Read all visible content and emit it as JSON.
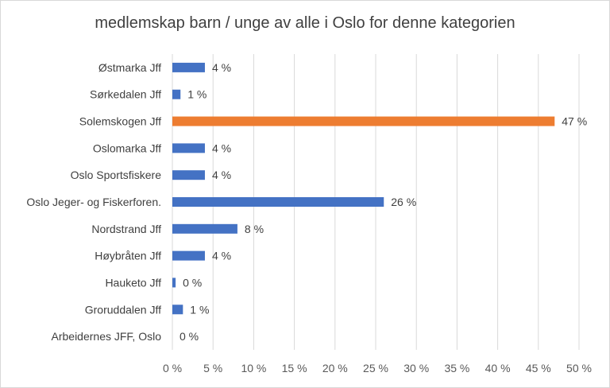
{
  "chart_data": {
    "type": "bar",
    "orientation": "horizontal",
    "title": "medlemskap barn / unge av alle i Oslo for denne kategorien",
    "categories": [
      "Østmarka Jff",
      "Sørkedalen Jff",
      "Solemskogen Jff",
      "Oslomarka Jff",
      "Oslo Sportsfiskere",
      "Oslo Jeger- og Fiskerforen.",
      "Nordstrand Jff",
      "Høybråten Jff",
      "Hauketo Jff",
      "Groruddalen Jff",
      "Arbeidernes JFF, Oslo"
    ],
    "values": [
      4,
      1,
      47,
      4,
      4,
      26,
      8,
      4,
      0.4,
      1.3,
      0
    ],
    "value_labels": [
      "4 %",
      "1 %",
      "47 %",
      "4 %",
      "4 %",
      "26 %",
      "8 %",
      "4 %",
      "0 %",
      "1 %",
      "0 %"
    ],
    "bar_colors": [
      "#4472c4",
      "#4472c4",
      "#ed7d31",
      "#4472c4",
      "#4472c4",
      "#4472c4",
      "#4472c4",
      "#4472c4",
      "#4472c4",
      "#4472c4",
      "#4472c4"
    ],
    "xlim": [
      0,
      50
    ],
    "x_ticks": [
      0,
      5,
      10,
      15,
      20,
      25,
      30,
      35,
      40,
      45,
      50
    ],
    "x_tick_labels": [
      "0 %",
      "5 %",
      "10 %",
      "15 %",
      "20 %",
      "25 %",
      "30 %",
      "35 %",
      "40 %",
      "45 %",
      "50 %"
    ],
    "grid": true,
    "legend": "none",
    "colors": {
      "primary": "#4472c4",
      "highlight": "#ed7d31",
      "grid": "#d9d9d9"
    }
  }
}
